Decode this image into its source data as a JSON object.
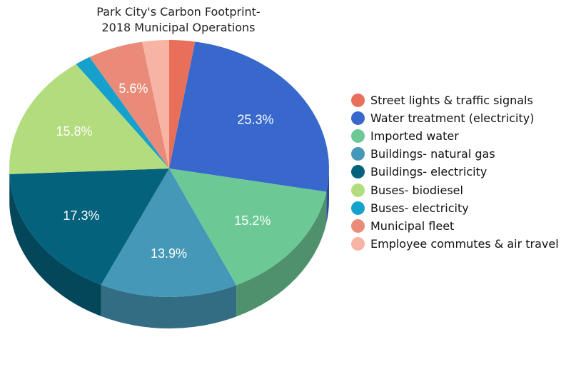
{
  "chart_data": {
    "type": "pie",
    "title": "Park City's Carbon Footprint-\n2018 Municipal Operations",
    "title_lines": [
      "Park City's Carbon Footprint-",
      "2018 Municipal Operations"
    ],
    "legend_position": "right",
    "slices": [
      {
        "name": "Street lights & traffic signals",
        "value": 2.6,
        "color": "#e8705a",
        "label": ""
      },
      {
        "name": "Water treatment (electricity)",
        "value": 25.3,
        "color": "#3868cc",
        "label": "25.3%"
      },
      {
        "name": "Imported water",
        "value": 15.2,
        "color": "#6cc996",
        "label": "15.2%"
      },
      {
        "name": "Buildings- natural gas",
        "value": 13.9,
        "color": "#4598b7",
        "label": "13.9%"
      },
      {
        "name": "Buildings- electricity",
        "value": 17.3,
        "color": "#05627d",
        "label": "17.3%"
      },
      {
        "name": "Buses- biodiesel",
        "value": 15.8,
        "color": "#b3dc7e",
        "label": "15.8%"
      },
      {
        "name": "Buses- electricity",
        "value": 1.6,
        "color": "#16a0cc",
        "label": ""
      },
      {
        "name": "Municipal fleet",
        "value": 5.6,
        "color": "#e98b78",
        "label": "5.6%"
      },
      {
        "name": "Employee commutes & air travel",
        "value": 2.7,
        "color": "#f7b4a5",
        "label": ""
      }
    ]
  }
}
